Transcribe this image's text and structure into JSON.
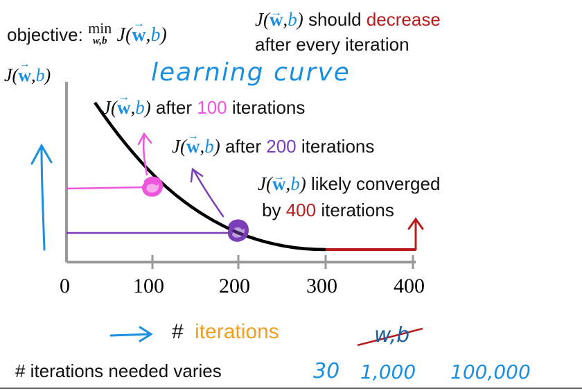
{
  "objective": {
    "label": "objective:",
    "min": "min",
    "min_sub": "w,b",
    "J": "J",
    "w": "w",
    "b": "b"
  },
  "note": {
    "J": "J",
    "w": "w",
    "b": "b",
    "text1": "should",
    "highlight": "decrease",
    "line2": "after every iteration"
  },
  "y_axis": {
    "J": "J",
    "w": "w",
    "b": "b"
  },
  "handwritten_title": "learning curve",
  "annotations": {
    "a100": {
      "prefix": "after",
      "num": "100",
      "suffix": "iterations"
    },
    "a200": {
      "prefix": "after",
      "num": "200",
      "suffix": "iterations"
    },
    "a400": {
      "line1": "likely converged",
      "line2_prefix": "by",
      "num": "400",
      "suffix": "iterations"
    }
  },
  "x_ticks": [
    "0",
    "100",
    "200",
    "300",
    "400"
  ],
  "x_label": {
    "prefix": "#",
    "word": "iterations"
  },
  "crossed_text": "w,b",
  "bottom": {
    "label": "# iterations needed varies",
    "values": [
      "30",
      "1,000",
      "100,000"
    ]
  },
  "colors": {
    "blue": "#1a8fe0",
    "pink": "#ee55dd",
    "purple": "#7a3fb8",
    "red": "#b81d1d",
    "orange": "#f0a020"
  },
  "chart_data": {
    "type": "line",
    "x": [
      30,
      100,
      200,
      300,
      400
    ],
    "series": [
      {
        "values": [
          1.0,
          0.45,
          0.15,
          0.0,
          0.0
        ]
      }
    ],
    "xticks": [
      "0",
      "100",
      "200",
      "300",
      "400"
    ]
  }
}
